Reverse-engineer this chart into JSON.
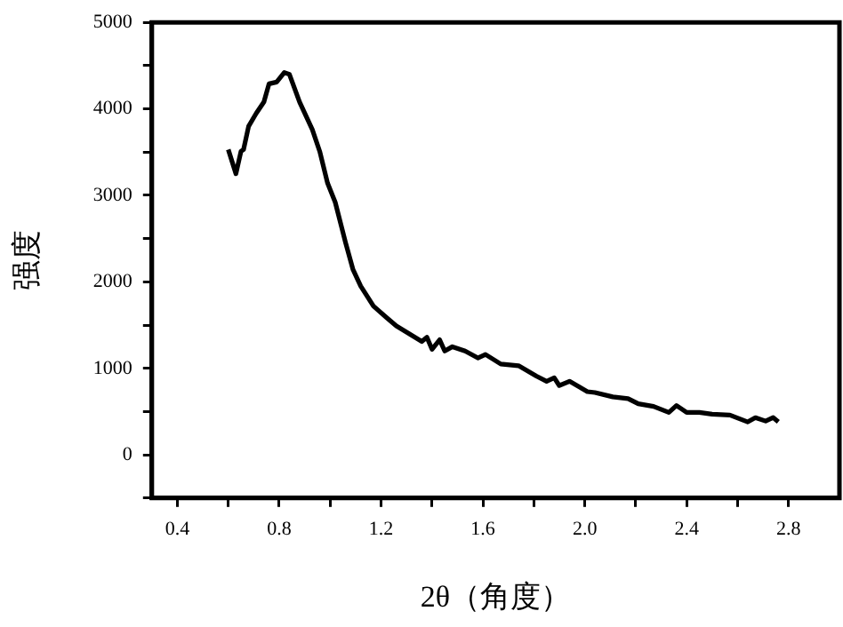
{
  "chart_data": {
    "type": "line",
    "xlabel": "2θ（角度）",
    "ylabel": "强度",
    "xlim": [
      0.3,
      3.0
    ],
    "xticks": [
      0.4,
      {
        "value": 0.6,
        "label": null
      },
      0.8,
      {
        "value": 1.0,
        "label": null
      },
      1.2,
      {
        "value": 1.4,
        "label": null
      },
      1.6,
      {
        "value": 1.8,
        "label": null
      },
      {
        "value": 2.0,
        "label": "2.0"
      },
      {
        "value": 2.2,
        "label": null
      },
      2.4,
      {
        "value": 2.6,
        "label": null
      },
      2.8
    ],
    "ylim": [
      -500,
      5000
    ],
    "yticks": [
      {
        "value": -500,
        "label": null
      },
      0,
      {
        "value": 500,
        "label": null
      },
      1000,
      {
        "value": 1500,
        "label": null
      },
      2000,
      {
        "value": 2500,
        "label": null
      },
      3000,
      {
        "value": 3500,
        "label": null
      },
      4000,
      {
        "value": 4500,
        "label": null
      },
      5000
    ],
    "grid": false,
    "legend": false,
    "marker": "none",
    "line_style": "solid",
    "series": [
      {
        "color": "#000000",
        "x": [
          0.6,
          0.63,
          0.65,
          0.66,
          0.68,
          0.71,
          0.74,
          0.76,
          0.79,
          0.82,
          0.84,
          0.88,
          0.93,
          0.96,
          0.99,
          1.02,
          1.06,
          1.09,
          1.12,
          1.17,
          1.22,
          1.26,
          1.31,
          1.36,
          1.38,
          1.4,
          1.43,
          1.45,
          1.48,
          1.53,
          1.58,
          1.61,
          1.67,
          1.74,
          1.81,
          1.85,
          1.88,
          1.9,
          1.94,
          1.97,
          2.01,
          2.04,
          2.11,
          2.17,
          2.21,
          2.27,
          2.33,
          2.36,
          2.4,
          2.45,
          2.5,
          2.57,
          2.64,
          2.67,
          2.71,
          2.74,
          2.76
        ],
        "values": [
          3530,
          3250,
          3510,
          3530,
          3800,
          3950,
          4080,
          4290,
          4310,
          4420,
          4400,
          4080,
          3760,
          3500,
          3140,
          2920,
          2460,
          2140,
          1950,
          1720,
          1590,
          1490,
          1400,
          1310,
          1360,
          1220,
          1330,
          1200,
          1250,
          1200,
          1120,
          1160,
          1050,
          1030,
          910,
          850,
          890,
          800,
          850,
          800,
          730,
          720,
          670,
          650,
          590,
          560,
          490,
          570,
          490,
          490,
          470,
          460,
          380,
          430,
          390,
          430,
          380
        ]
      }
    ]
  }
}
